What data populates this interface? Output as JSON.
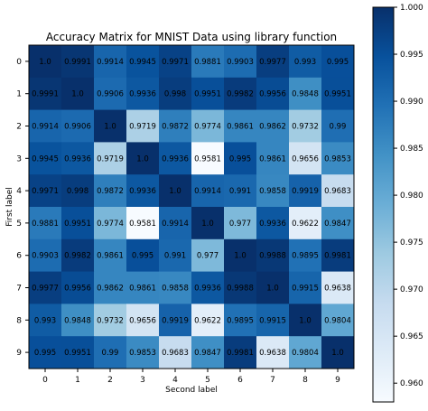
{
  "chart_data": {
    "type": "heatmap",
    "title": "Accuracy Matrix for MNIST Data using library function",
    "xlabel": "Second label",
    "ylabel": "First label",
    "x_categories": [
      "0",
      "1",
      "2",
      "3",
      "4",
      "5",
      "6",
      "7",
      "8",
      "9"
    ],
    "y_categories": [
      "0",
      "1",
      "2",
      "3",
      "4",
      "5",
      "6",
      "7",
      "8",
      "9"
    ],
    "cell_labels": [
      [
        "1.0",
        "0.9991",
        "0.9914",
        "0.9945",
        "0.9971",
        "0.9881",
        "0.9903",
        "0.9977",
        "0.993",
        "0.995"
      ],
      [
        "0.9991",
        "1.0",
        "0.9906",
        "0.9936",
        "0.998",
        "0.9951",
        "0.9982",
        "0.9956",
        "0.9848",
        "0.9951"
      ],
      [
        "0.9914",
        "0.9906",
        "1.0",
        "0.9719",
        "0.9872",
        "0.9774",
        "0.9861",
        "0.9862",
        "0.9732",
        "0.99"
      ],
      [
        "0.9945",
        "0.9936",
        "0.9719",
        "1.0",
        "0.9936",
        "0.9581",
        "0.995",
        "0.9861",
        "0.9656",
        "0.9853"
      ],
      [
        "0.9971",
        "0.998",
        "0.9872",
        "0.9936",
        "1.0",
        "0.9914",
        "0.991",
        "0.9858",
        "0.9919",
        "0.9683"
      ],
      [
        "0.9881",
        "0.9951",
        "0.9774",
        "0.9581",
        "0.9914",
        "1.0",
        "0.977",
        "0.9936",
        "0.9622",
        "0.9847"
      ],
      [
        "0.9903",
        "0.9982",
        "0.9861",
        "0.995",
        "0.991",
        "0.977",
        "1.0",
        "0.9988",
        "0.9895",
        "0.9981"
      ],
      [
        "0.9977",
        "0.9956",
        "0.9862",
        "0.9861",
        "0.9858",
        "0.9936",
        "0.9988",
        "1.0",
        "0.9915",
        "0.9638"
      ],
      [
        "0.993",
        "0.9848",
        "0.9732",
        "0.9656",
        "0.9919",
        "0.9622",
        "0.9895",
        "0.9915",
        "1.0",
        "0.9804"
      ],
      [
        "0.995",
        "0.9951",
        "0.99",
        "0.9853",
        "0.9683",
        "0.9847",
        "0.9981",
        "0.9638",
        "0.9804",
        "1.0"
      ]
    ],
    "colorbar": {
      "min": 0.958,
      "max": 1.0,
      "ticks": [
        "1.000",
        "0.995",
        "0.990",
        "0.985",
        "0.980",
        "0.975",
        "0.970",
        "0.965",
        "0.960"
      ],
      "colormap": "Blues"
    },
    "grid": false
  }
}
